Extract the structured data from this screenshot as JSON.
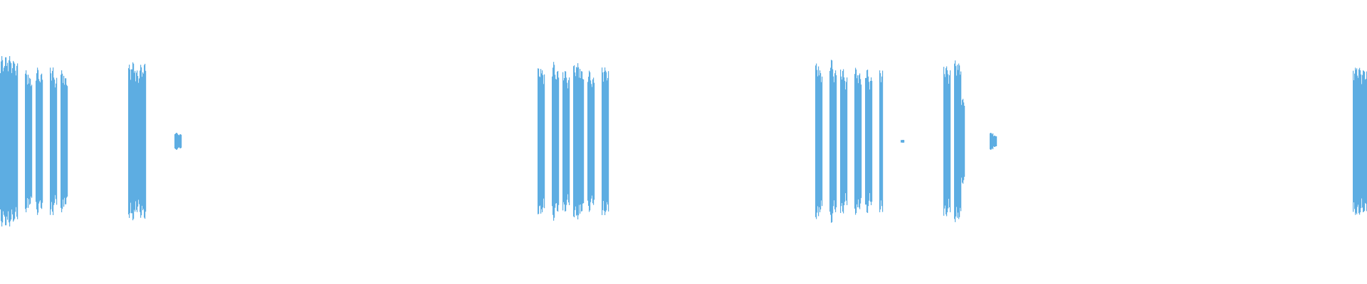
{
  "chart_data": {
    "type": "waveform",
    "title": "",
    "xlabel": "",
    "ylabel": "",
    "ylim": [
      -1,
      1
    ],
    "grid": false,
    "bin_count": 384,
    "color": "#5dade2",
    "peaks": [
      [
        0,
        0.6
      ],
      [
        1,
        0.6
      ],
      [
        2,
        0.6
      ],
      [
        3,
        0.57
      ],
      [
        4,
        0.55
      ],
      [
        7,
        0.5
      ],
      [
        8,
        0.45
      ],
      [
        10,
        0.52
      ],
      [
        11,
        0.48
      ],
      [
        14,
        0.52
      ],
      [
        15,
        0.45
      ],
      [
        17,
        0.5
      ],
      [
        18,
        0.45
      ],
      [
        36,
        0.54
      ],
      [
        37,
        0.56
      ],
      [
        38,
        0.5
      ],
      [
        39,
        0.54
      ],
      [
        40,
        0.55
      ],
      [
        49,
        0.06
      ],
      [
        50,
        0.05
      ],
      [
        151,
        0.52
      ],
      [
        152,
        0.5
      ],
      [
        155,
        0.56
      ],
      [
        156,
        0.5
      ],
      [
        158,
        0.5
      ],
      [
        159,
        0.45
      ],
      [
        161,
        0.54
      ],
      [
        162,
        0.55
      ],
      [
        163,
        0.5
      ],
      [
        165,
        0.5
      ],
      [
        166,
        0.45
      ],
      [
        169,
        0.52
      ],
      [
        170,
        0.5
      ],
      [
        229,
        0.55
      ],
      [
        230,
        0.5
      ],
      [
        233,
        0.58
      ],
      [
        234,
        0.5
      ],
      [
        236,
        0.51
      ],
      [
        237,
        0.45
      ],
      [
        240,
        0.52
      ],
      [
        241,
        0.48
      ],
      [
        243,
        0.51
      ],
      [
        244,
        0.45
      ],
      [
        247,
        0.5
      ],
      [
        253,
        0.01
      ],
      [
        265,
        0.53
      ],
      [
        266,
        0.5
      ],
      [
        268,
        0.57
      ],
      [
        269,
        0.55
      ],
      [
        270,
        0.3
      ],
      [
        278,
        0.06
      ],
      [
        279,
        0.04
      ],
      [
        380,
        0.52
      ],
      [
        381,
        0.52
      ],
      [
        382,
        0.5
      ],
      [
        383,
        0.5
      ]
    ]
  }
}
